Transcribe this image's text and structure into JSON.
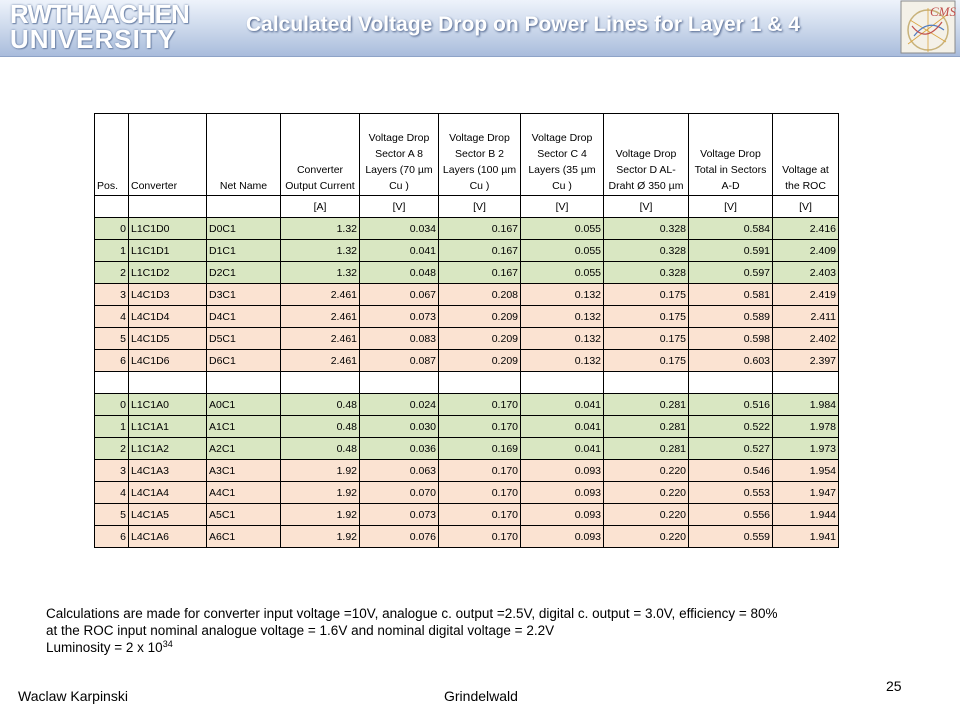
{
  "header": {
    "logo_line1": "RWTHAACHEN",
    "logo_line2": "UNIVERSITY",
    "cms_text": "CMS",
    "title": "Calculated Voltage Drop on Power Lines for Layer 1 & 4"
  },
  "table": {
    "headers": [
      "Pos.",
      "Converter",
      "Net Name",
      "Converter Output Current",
      "Voltage Drop Sector A 8 Layers (70 µm Cu )",
      "Voltage Drop Sector B 2 Layers (100 µm Cu )",
      "Voltage Drop Sector C 4 Layers (35 µm Cu )",
      "Voltage Drop Sector D AL-Draht Ø 350 µm",
      "Voltage Drop Total in Sectors A-D",
      "Voltage at the ROC"
    ],
    "units": [
      "",
      "",
      "",
      "[A]",
      "[V]",
      "[V]",
      "[V]",
      "[V]",
      "[V]",
      "[V]"
    ],
    "rows_d": [
      [
        "0",
        "L1C1D0",
        "D0C1",
        "1.32",
        "0.034",
        "0.167",
        "0.055",
        "0.328",
        "0.584",
        "2.416"
      ],
      [
        "1",
        "L1C1D1",
        "D1C1",
        "1.32",
        "0.041",
        "0.167",
        "0.055",
        "0.328",
        "0.591",
        "2.409"
      ],
      [
        "2",
        "L1C1D2",
        "D2C1",
        "1.32",
        "0.048",
        "0.167",
        "0.055",
        "0.328",
        "0.597",
        "2.403"
      ],
      [
        "3",
        "L4C1D3",
        "D3C1",
        "2.461",
        "0.067",
        "0.208",
        "0.132",
        "0.175",
        "0.581",
        "2.419"
      ],
      [
        "4",
        "L4C1D4",
        "D4C1",
        "2.461",
        "0.073",
        "0.209",
        "0.132",
        "0.175",
        "0.589",
        "2.411"
      ],
      [
        "5",
        "L4C1D5",
        "D5C1",
        "2.461",
        "0.083",
        "0.209",
        "0.132",
        "0.175",
        "0.598",
        "2.402"
      ],
      [
        "6",
        "L4C1D6",
        "D6C1",
        "2.461",
        "0.087",
        "0.209",
        "0.132",
        "0.175",
        "0.603",
        "2.397"
      ]
    ],
    "rows_a": [
      [
        "0",
        "L1C1A0",
        "A0C1",
        "0.48",
        "0.024",
        "0.170",
        "0.041",
        "0.281",
        "0.516",
        "1.984"
      ],
      [
        "1",
        "L1C1A1",
        "A1C1",
        "0.48",
        "0.030",
        "0.170",
        "0.041",
        "0.281",
        "0.522",
        "1.978"
      ],
      [
        "2",
        "L1C1A2",
        "A2C1",
        "0.48",
        "0.036",
        "0.169",
        "0.041",
        "0.281",
        "0.527",
        "1.973"
      ],
      [
        "3",
        "L4C1A3",
        "A3C1",
        "1.92",
        "0.063",
        "0.170",
        "0.093",
        "0.220",
        "0.546",
        "1.954"
      ],
      [
        "4",
        "L4C1A4",
        "A4C1",
        "1.92",
        "0.070",
        "0.170",
        "0.093",
        "0.220",
        "0.553",
        "1.947"
      ],
      [
        "5",
        "L4C1A5",
        "A5C1",
        "1.92",
        "0.073",
        "0.170",
        "0.093",
        "0.220",
        "0.556",
        "1.944"
      ],
      [
        "6",
        "L4C1A6",
        "A6C1",
        "1.92",
        "0.076",
        "0.170",
        "0.093",
        "0.220",
        "0.559",
        "1.941"
      ]
    ]
  },
  "notes": {
    "line1": "Calculations are made for converter input voltage =10V,  analogue c. output =2.5V, digital c. output = 3.0V, efficiency = 80%",
    "line2": "at the ROC input nominal analogue voltage = 1.6V and  nominal digital voltage = 2.2V",
    "line3_prefix": "Luminosity = 2 x 10",
    "line3_exp": "34"
  },
  "footer": {
    "author": "Waclaw Karpinski",
    "venue": "Grindelwald",
    "page": "25"
  },
  "colors": {
    "green_rows": "#d9e7c2",
    "orange_rows": "#fbe3d2",
    "header_bar": "#a9bcdc"
  }
}
